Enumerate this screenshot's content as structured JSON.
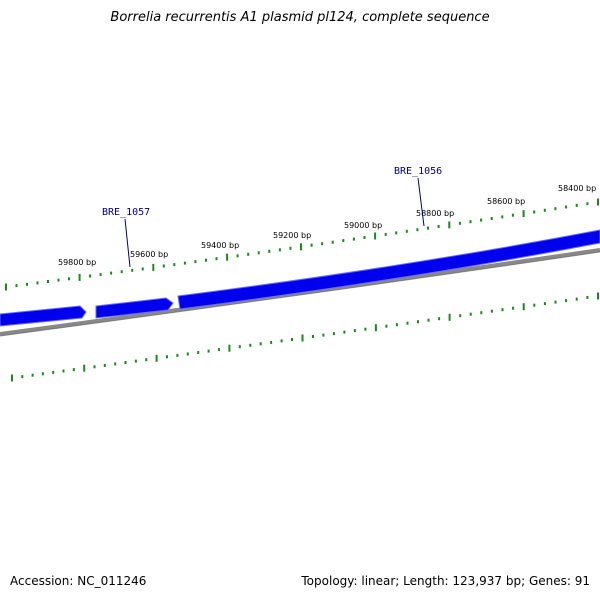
{
  "title": "Borrelia recurrentis A1 plasmid pl124, complete sequence",
  "colors": {
    "gene_fill": "#0000ee",
    "gene_edge": "#6a6aff",
    "backbone": "#888888",
    "backbone_shadow": "#5a5a5a",
    "tick": "#1a8a1a",
    "gene_label": "#000080"
  },
  "ticks": {
    "labels": [
      "59800 bp",
      "59600 bp",
      "59400 bp",
      "59200 bp",
      "59000 bp",
      "58800 bp",
      "58600 bp",
      "58400 bp"
    ]
  },
  "genes": [
    {
      "name": "BRE_1057"
    },
    {
      "name": "BRE_1056"
    }
  ],
  "footer": {
    "accession": "Accession: NC_011246",
    "summary": "Topology: linear; Length: 123,937 bp; Genes: 91"
  }
}
